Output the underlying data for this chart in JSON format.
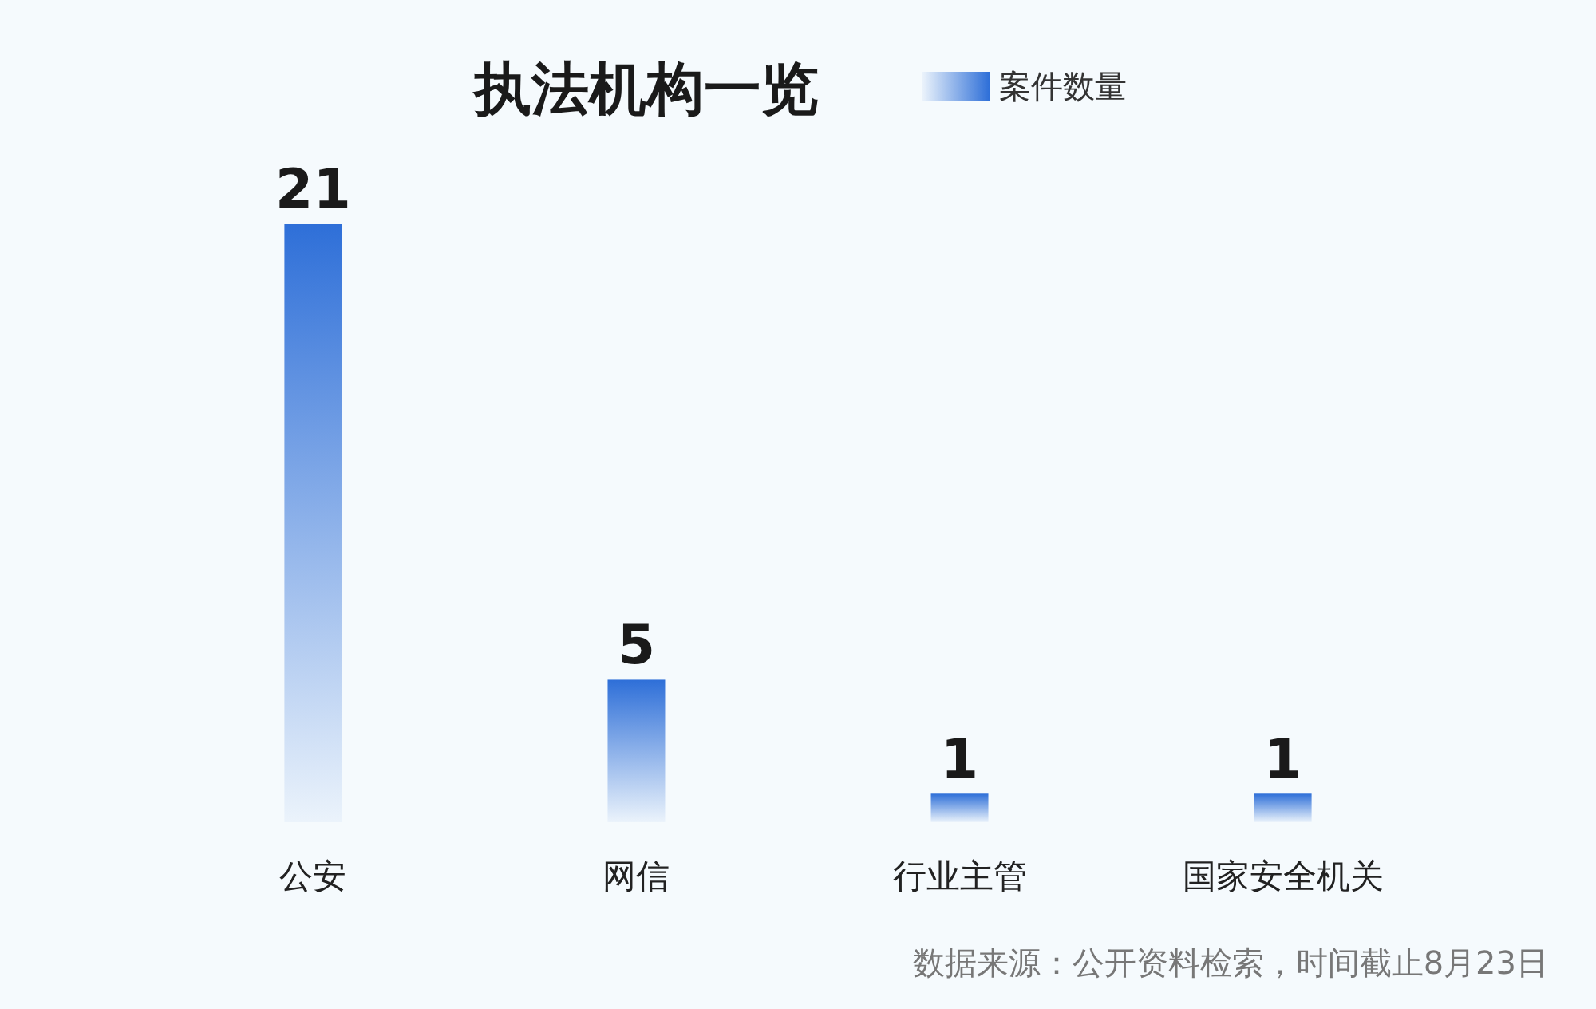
{
  "chart_data": {
    "type": "bar",
    "title": "执法机构一览",
    "categories": [
      "公安",
      "网信",
      "行业主管",
      "国家安全机关"
    ],
    "series": [
      {
        "name": "案件数量",
        "color": "#2e6fd8",
        "values": [
          21,
          5,
          1,
          1
        ]
      }
    ],
    "data_labels": true,
    "legend": "top right",
    "annotations": [
      "数据来源：公开资料检索，时间截止8月23日"
    ]
  }
}
